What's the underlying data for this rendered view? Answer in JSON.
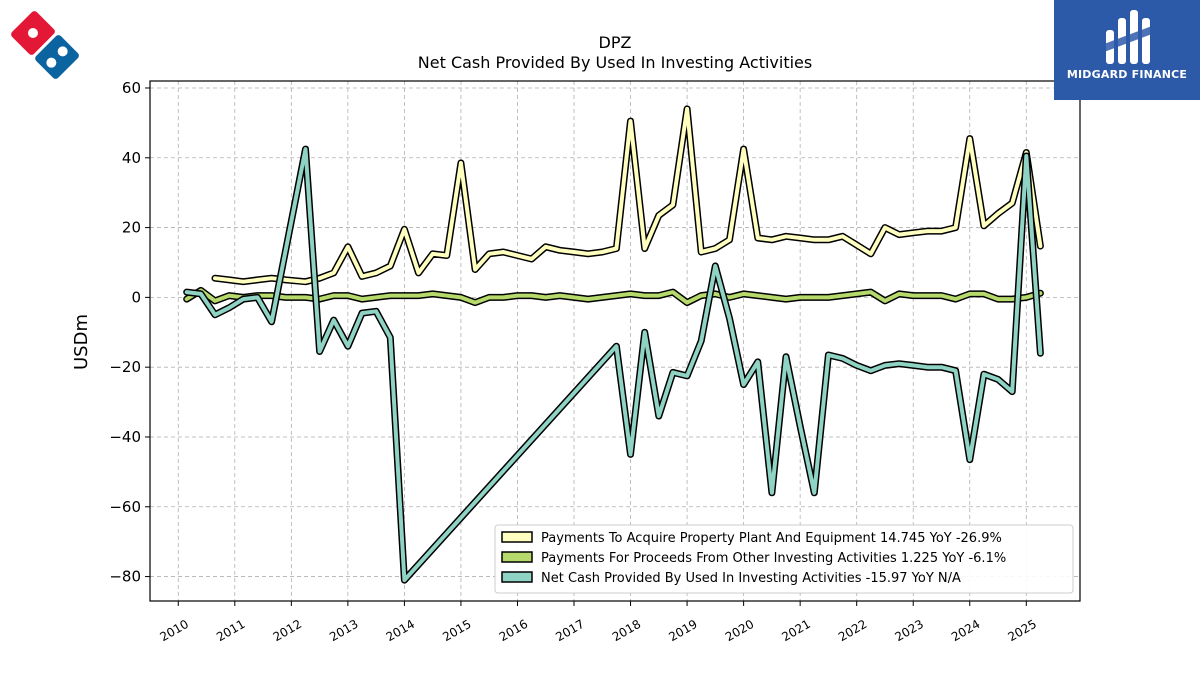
{
  "brand": {
    "left_logo": "dominos-logo",
    "right_logo_text": "MIDGARD FINANCE",
    "right_logo_color": "#2d5aa8"
  },
  "chart_data": {
    "type": "line",
    "title": "DPZ",
    "subtitle": "Net Cash Provided By Used In Investing Activities",
    "ylabel": "USDm",
    "xlabel": "",
    "ylim": [
      -87,
      62
    ],
    "xlim": [
      2009.5,
      2025.95
    ],
    "yticks": [
      60,
      40,
      20,
      0,
      -20,
      -40,
      -60,
      -80
    ],
    "yticklabels": [
      "60",
      "40",
      "20",
      "0",
      "−20",
      "−40",
      "−60",
      "−80"
    ],
    "xticks": [
      "2010",
      "2011",
      "2012",
      "2013",
      "2014",
      "2015",
      "2016",
      "2017",
      "2018",
      "2019",
      "2020",
      "2021",
      "2022",
      "2023",
      "2024",
      "2025"
    ],
    "grid": true,
    "legend_position": "lower-right",
    "series": [
      {
        "name": "Payments To Acquire Property Plant And Equipment",
        "legend_label": "Payments To Acquire Property Plant And Equipment  14.745 YoY -26.9%",
        "color": "#ffffbf",
        "x": [
          2010.65,
          2010.9,
          2011.15,
          2011.4,
          2011.65,
          2011.9,
          2012.25,
          2012.5,
          2012.75,
          2013.0,
          2013.25,
          2013.5,
          2013.75,
          2014.0,
          2014.25,
          2014.5,
          2014.75,
          2015.0,
          2015.25,
          2015.5,
          2015.75,
          2016.0,
          2016.25,
          2016.5,
          2016.75,
          2017.0,
          2017.25,
          2017.5,
          2017.75,
          2018.0,
          2018.25,
          2018.5,
          2018.75,
          2019.0,
          2019.25,
          2019.5,
          2019.75,
          2020.0,
          2020.25,
          2020.5,
          2020.75,
          2021.0,
          2021.25,
          2021.5,
          2021.75,
          2022.0,
          2022.25,
          2022.5,
          2022.75,
          2023.0,
          2023.25,
          2023.5,
          2023.75,
          2024.0,
          2024.25,
          2024.5,
          2024.75,
          2025.0,
          2025.25
        ],
        "values": [
          5.5,
          5.0,
          4.5,
          5.0,
          5.5,
          5.0,
          4.5,
          5.5,
          7.0,
          14.5,
          6.0,
          7.0,
          9.0,
          19.5,
          7.0,
          12.5,
          12.0,
          38.5,
          8.0,
          12.5,
          13.0,
          12.0,
          11.0,
          14.5,
          13.5,
          13.0,
          12.5,
          13.0,
          14.0,
          50.5,
          14.0,
          23.5,
          26.5,
          54.0,
          13.0,
          14.0,
          16.5,
          42.5,
          17.0,
          16.5,
          17.5,
          17.0,
          16.5,
          16.5,
          17.5,
          15.0,
          12.5,
          20.0,
          18.0,
          18.5,
          19.0,
          19.0,
          20.0,
          45.5,
          20.5,
          24.0,
          27.0,
          41.5,
          14.7
        ]
      },
      {
        "name": "Payments For Proceeds From Other Investing Activities",
        "legend_label": "Payments For Proceeds From Other Investing Activities  1.225 YoY -6.1%",
        "color": "#b5d96b",
        "x": [
          2010.15,
          2010.4,
          2010.65,
          2010.9,
          2011.15,
          2011.4,
          2011.65,
          2011.9,
          2012.25,
          2012.5,
          2012.75,
          2013.0,
          2013.25,
          2013.5,
          2013.75,
          2014.0,
          2014.25,
          2014.5,
          2014.75,
          2015.0,
          2015.25,
          2015.5,
          2015.75,
          2016.0,
          2016.25,
          2016.5,
          2016.75,
          2017.0,
          2017.25,
          2017.5,
          2017.75,
          2018.0,
          2018.25,
          2018.5,
          2018.75,
          2019.0,
          2019.25,
          2019.5,
          2019.75,
          2020.0,
          2020.25,
          2020.5,
          2020.75,
          2021.0,
          2021.25,
          2021.5,
          2021.75,
          2022.0,
          2022.25,
          2022.5,
          2022.75,
          2023.0,
          2023.25,
          2023.5,
          2023.75,
          2024.0,
          2024.25,
          2024.5,
          2024.75,
          2025.0,
          2025.25
        ],
        "values": [
          -0.5,
          2.0,
          -1.0,
          0.5,
          0.0,
          0.5,
          0.5,
          0.0,
          0.0,
          -0.5,
          0.5,
          0.5,
          -0.5,
          0.0,
          0.5,
          0.5,
          0.5,
          1.0,
          0.5,
          0.0,
          -1.5,
          0.0,
          0.0,
          0.5,
          0.5,
          0.0,
          0.5,
          0.0,
          -0.5,
          0.0,
          0.5,
          1.0,
          0.5,
          0.5,
          1.5,
          -1.5,
          0.5,
          1.0,
          0.0,
          1.0,
          0.5,
          0.0,
          -0.5,
          0.0,
          0.0,
          0.0,
          0.5,
          1.0,
          1.5,
          -1.0,
          1.0,
          0.5,
          0.5,
          0.5,
          -0.5,
          1.0,
          1.0,
          -0.5,
          -0.5,
          0.0,
          1.2
        ]
      },
      {
        "name": "Net Cash Provided By Used In Investing Activities",
        "legend_label": "Net Cash Provided By Used In Investing Activities  -15.97 YoY N/A",
        "color": "#8fd3c4",
        "x": [
          2010.15,
          2010.4,
          2010.65,
          2010.9,
          2011.15,
          2011.4,
          2011.65,
          2012.25,
          2012.5,
          2012.75,
          2013.0,
          2013.25,
          2013.5,
          2013.75,
          2014.0,
          2017.75,
          2018.0,
          2018.25,
          2018.5,
          2018.75,
          2019.0,
          2019.25,
          2019.5,
          2019.75,
          2020.0,
          2020.25,
          2020.5,
          2020.75,
          2021.0,
          2021.25,
          2021.5,
          2021.75,
          2022.0,
          2022.25,
          2022.5,
          2022.75,
          2023.0,
          2023.25,
          2023.5,
          2023.75,
          2024.0,
          2024.25,
          2024.5,
          2024.75,
          2025.0,
          2025.25
        ],
        "values": [
          1.5,
          1.0,
          -5.0,
          -3.0,
          -0.5,
          0.0,
          -7.0,
          42.5,
          -15.5,
          -6.5,
          -14.0,
          -4.5,
          -4.0,
          -11.5,
          -81.0,
          -14.0,
          -45.0,
          -10.0,
          -34.0,
          -21.5,
          -22.5,
          -12.5,
          9.0,
          -6.0,
          -25.0,
          -18.5,
          -56.0,
          -17.0,
          -37.0,
          -56.0,
          -16.5,
          -17.5,
          -19.5,
          -21.0,
          -19.5,
          -19.0,
          -19.5,
          -20.0,
          -20.0,
          -21.0,
          -46.5,
          -22.0,
          -23.5,
          -27.0,
          40.5,
          -16.0
        ]
      }
    ]
  }
}
